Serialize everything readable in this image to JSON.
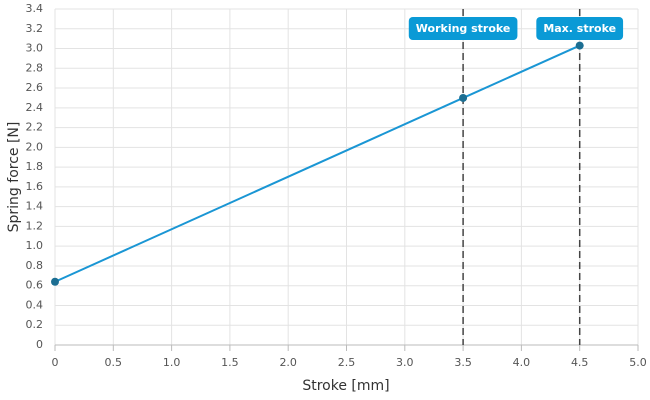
{
  "chart_data": {
    "type": "line",
    "x_label": "Stroke [mm]",
    "y_label": "Spring force [N]",
    "x": [
      0,
      3.5,
      4.5
    ],
    "series": [
      {
        "name": "Spring force",
        "color": "#1a96d4",
        "values": [
          0.64,
          2.5,
          3.03
        ]
      }
    ],
    "marker_color": "#1c6e92",
    "xlim": [
      0,
      5
    ],
    "xticks": [
      0,
      0.5,
      {
        "value": 1,
        "label": "1.0"
      },
      1.5,
      {
        "value": 2,
        "label": "2.0"
      },
      2.5,
      {
        "value": 3,
        "label": "3.0"
      },
      3.5,
      {
        "value": 4,
        "label": "4.0"
      },
      4.5,
      {
        "value": 5,
        "label": "5.0"
      }
    ],
    "ylim": [
      0,
      3.4
    ],
    "yticks": [
      0,
      0.2,
      0.4,
      0.6,
      0.8,
      {
        "value": 1,
        "label": "1.0"
      },
      1.2,
      1.4,
      1.6,
      1.8,
      {
        "value": 2,
        "label": "2.0"
      },
      2.2,
      2.4,
      2.6,
      2.8,
      {
        "value": 3,
        "label": "3.0"
      },
      3.2,
      3.4
    ],
    "grid": true,
    "annotations": [
      {
        "x": 3.5,
        "label": "Working stroke"
      },
      {
        "x": 4.5,
        "label": "Max. stroke"
      }
    ],
    "annotation_color": "#0a9ad6"
  }
}
